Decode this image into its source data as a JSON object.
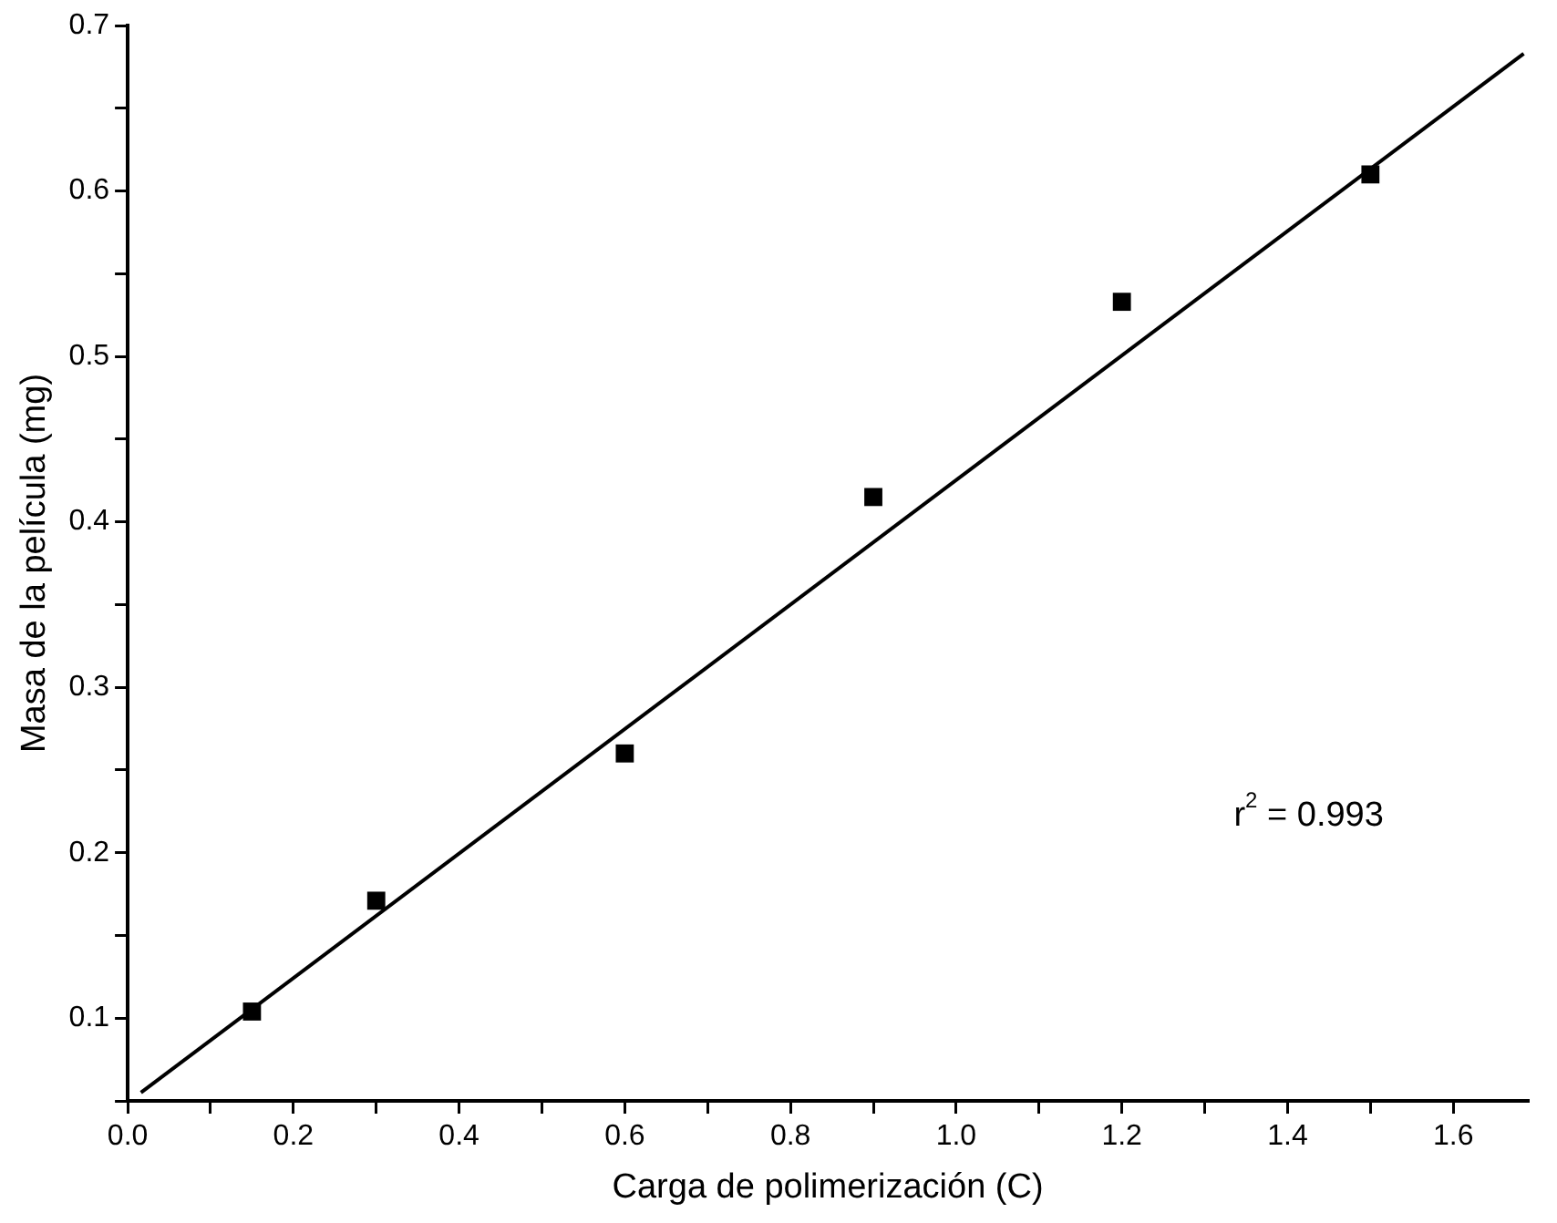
{
  "chart_data": {
    "type": "scatter",
    "xlabel": "Carga de polimerización (C)",
    "ylabel": "Masa de la película (mg)",
    "xlim": [
      0,
      1.69
    ],
    "ylim": [
      0.05,
      0.7
    ],
    "xticks": [
      {
        "value": 0,
        "label": "0.0"
      },
      {
        "value": 0.1,
        "label": null
      },
      0.2,
      {
        "value": 0.3,
        "label": null
      },
      0.4,
      {
        "value": 0.5,
        "label": null
      },
      0.6,
      {
        "value": 0.7,
        "label": null
      },
      0.8,
      {
        "value": 0.9,
        "label": null
      },
      {
        "value": 1,
        "label": "1.0"
      },
      {
        "value": 1.1,
        "label": null
      },
      1.2,
      {
        "value": 1.3,
        "label": null
      },
      1.4,
      {
        "value": 1.5,
        "label": null
      },
      1.6
    ],
    "yticks": [
      {
        "value": 0.05,
        "label": null
      },
      0.1,
      {
        "value": 0.15,
        "label": null
      },
      0.2,
      {
        "value": 0.25,
        "label": null
      },
      0.3,
      {
        "value": 0.35,
        "label": null
      },
      0.4,
      {
        "value": 0.45,
        "label": null
      },
      0.5,
      {
        "value": 0.55,
        "label": null
      },
      0.6,
      {
        "value": 0.65,
        "label": null
      },
      0.7
    ],
    "grid": false,
    "legend": false,
    "annotations": [
      "r$^{2}$ = 0.993"
    ],
    "series": [
      {
        "marker": "square",
        "color": "#000000",
        "x": [
          0.15,
          0.3,
          0.6,
          0.9,
          1.2,
          1.5
        ],
        "values": [
          0.104,
          0.171,
          0.26,
          0.415,
          0.533,
          0.61
        ]
      },
      {
        "type": "line",
        "marker": "none",
        "color": "#000000",
        "x": [
          0.016,
          1.685
        ],
        "values": [
          0.055,
          0.683
        ]
      }
    ]
  }
}
